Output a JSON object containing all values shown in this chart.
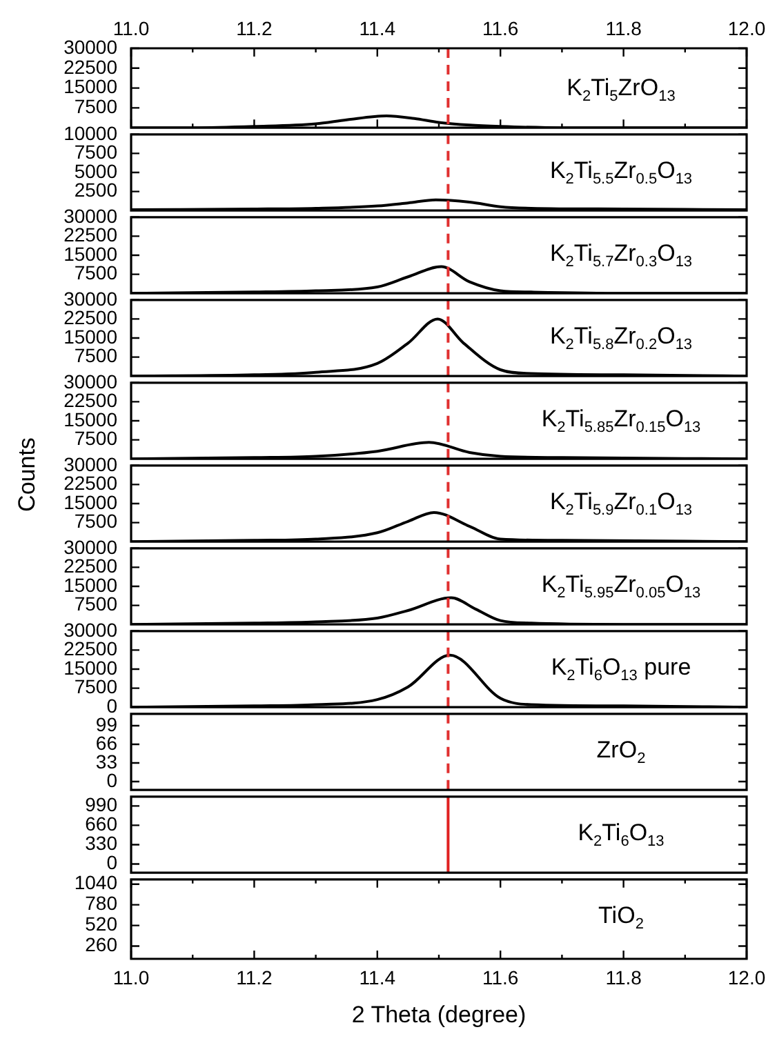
{
  "chart_data": [
    {
      "type": "line",
      "annotations": [
        "K$_{2}$Ti$_{5}$ZrO$_{13}$"
      ],
      "xlim": [
        11.0,
        12.0
      ],
      "x2lim": [
        11.0,
        12.0
      ],
      "x2ticks": [
        {
          "value": 11,
          "label": "11.0"
        },
        {
          "value": 11.1,
          "label": null
        },
        11.2,
        {
          "value": 11.3,
          "label": null
        },
        11.4,
        {
          "value": 11.5,
          "label": null
        },
        11.6,
        {
          "value": 11.7,
          "label": null
        },
        11.8,
        {
          "value": 11.9,
          "label": null
        },
        {
          "value": 12,
          "label": "12.0"
        }
      ],
      "ylim": [
        0,
        30000
      ],
      "yticks": [
        7500,
        15000,
        22500,
        30000
      ],
      "tick_labels": "y",
      "marker": "none",
      "ref_lines": [
        {
          "axis": "x",
          "value": 11.515,
          "color": "#e03030",
          "line_style": "dashed"
        }
      ],
      "series": [
        {
          "color": "#000000",
          "x": [
            11.0,
            11.1,
            11.2,
            11.3,
            11.35,
            11.415,
            11.46,
            11.5,
            11.55,
            11.6,
            11.7,
            11.8,
            12.0
          ],
          "values": [
            0,
            0,
            500,
            1500,
            3000,
            4500,
            3500,
            2000,
            1000,
            500,
            0,
            0,
            0
          ]
        }
      ]
    },
    {
      "type": "line",
      "annotations": [
        "K$_{2}$Ti$_{5.5}$Zr$_{0.5}$O$_{13}$"
      ],
      "xlim": [
        11.0,
        12.0
      ],
      "ylim": [
        0,
        10000
      ],
      "yticks": [
        2500,
        5000,
        7500,
        10000
      ],
      "tick_labels": "y",
      "marker": "none",
      "ref_lines": [
        {
          "axis": "x",
          "value": 11.515,
          "color": "#e03030",
          "line_style": "dashed"
        }
      ],
      "series": [
        {
          "color": "#000000",
          "x": [
            11.0,
            11.2,
            11.3,
            11.4,
            11.45,
            11.495,
            11.55,
            11.6,
            11.65,
            11.8,
            12.0
          ],
          "values": [
            100,
            200,
            300,
            600,
            1000,
            1400,
            1100,
            500,
            300,
            200,
            100
          ]
        }
      ]
    },
    {
      "type": "line",
      "annotations": [
        "K$_{2}$Ti$_{5.7}$Zr$_{0.3}$O$_{13}$"
      ],
      "xlim": [
        11.0,
        12.0
      ],
      "ylim": [
        0,
        30000
      ],
      "yticks": [
        7500,
        15000,
        22500,
        30000
      ],
      "tick_labels": "y",
      "marker": "none",
      "ref_lines": [
        {
          "axis": "x",
          "value": 11.515,
          "color": "#e03030",
          "line_style": "dashed"
        }
      ],
      "series": [
        {
          "color": "#000000",
          "x": [
            11.0,
            11.2,
            11.3,
            11.4,
            11.45,
            11.504,
            11.55,
            11.6,
            11.65,
            11.8,
            12.0
          ],
          "values": [
            0,
            500,
            1000,
            2500,
            6500,
            10500,
            4500,
            1000,
            500,
            0,
            0
          ]
        }
      ]
    },
    {
      "type": "line",
      "annotations": [
        "K$_{2}$Ti$_{5.8}$Zr$_{0.2}$O$_{13}$"
      ],
      "xlim": [
        11.0,
        12.0
      ],
      "ylim": [
        0,
        30000
      ],
      "yticks": [
        7500,
        15000,
        22500,
        30000
      ],
      "tick_labels": "y",
      "marker": "none",
      "ref_lines": [
        {
          "axis": "x",
          "value": 11.515,
          "color": "#e03030",
          "line_style": "dashed"
        }
      ],
      "series": [
        {
          "color": "#000000",
          "x": [
            11.0,
            11.2,
            11.3,
            11.4,
            11.45,
            11.498,
            11.54,
            11.6,
            11.65,
            11.8,
            12.0
          ],
          "values": [
            0,
            500,
            1500,
            5000,
            13000,
            22500,
            13000,
            2500,
            1000,
            500,
            0
          ]
        }
      ]
    },
    {
      "type": "line",
      "annotations": [
        "K$_{2}$Ti$_{5.85}$Zr$_{0.15}$O$_{13}$"
      ],
      "ylabel": "Counts",
      "xlim": [
        11.0,
        12.0
      ],
      "ylim": [
        0,
        30000
      ],
      "yticks": [
        7500,
        15000,
        22500,
        30000
      ],
      "tick_labels": "y",
      "marker": "none",
      "ref_lines": [
        {
          "axis": "x",
          "value": 11.515,
          "color": "#e03030",
          "line_style": "dashed"
        }
      ],
      "series": [
        {
          "color": "#000000",
          "x": [
            11.0,
            11.2,
            11.3,
            11.4,
            11.484,
            11.55,
            11.6,
            11.7,
            12.0
          ],
          "values": [
            0,
            500,
            1000,
            3000,
            6500,
            2500,
            1000,
            500,
            0
          ]
        }
      ]
    },
    {
      "type": "line",
      "annotations": [
        "K$_{2}$Ti$_{5.9}$Zr$_{0.1}$O$_{13}$"
      ],
      "xlim": [
        11.0,
        12.0
      ],
      "ylim": [
        0,
        30000
      ],
      "yticks": [
        7500,
        15000,
        22500,
        30000
      ],
      "tick_labels": "y",
      "marker": "none",
      "ref_lines": [
        {
          "axis": "x",
          "value": 11.515,
          "color": "#e03030",
          "line_style": "dashed"
        }
      ],
      "series": [
        {
          "color": "#000000",
          "x": [
            11.0,
            11.2,
            11.3,
            11.4,
            11.45,
            11.492,
            11.55,
            11.6,
            11.7,
            12.0
          ],
          "values": [
            0,
            500,
            1000,
            3500,
            8000,
            11500,
            6000,
            1000,
            500,
            0
          ]
        }
      ]
    },
    {
      "type": "line",
      "annotations": [
        "K$_{2}$Ti$_{5.95}$Zr$_{0.05}$O$_{13}$"
      ],
      "xlim": [
        11.0,
        12.0
      ],
      "ylim": [
        0,
        30000
      ],
      "yticks": [
        7500,
        15000,
        22500,
        30000
      ],
      "tick_labels": "y",
      "marker": "none",
      "ref_lines": [
        {
          "axis": "x",
          "value": 11.515,
          "color": "#e03030",
          "line_style": "dashed"
        }
      ],
      "series": [
        {
          "color": "#000000",
          "x": [
            11.0,
            11.2,
            11.3,
            11.4,
            11.45,
            11.52,
            11.56,
            11.6,
            11.65,
            11.8,
            12.0
          ],
          "values": [
            0,
            500,
            1000,
            2500,
            5500,
            10500,
            6000,
            1500,
            500,
            0,
            0
          ]
        }
      ]
    },
    {
      "type": "line",
      "annotations": [
        "K$_{2}$Ti$_{6}$O$_{13}$ pure"
      ],
      "xlim": [
        11.0,
        12.0
      ],
      "ylim": [
        0,
        30000
      ],
      "yticks": [
        0,
        7500,
        15000,
        22500,
        30000
      ],
      "tick_labels": "y",
      "marker": "none",
      "ref_lines": [
        {
          "axis": "x",
          "value": 11.515,
          "color": "#e03030",
          "line_style": "dashed"
        }
      ],
      "series": [
        {
          "color": "#000000",
          "x": [
            11.0,
            11.2,
            11.3,
            11.4,
            11.45,
            11.518,
            11.6,
            11.65,
            11.8,
            12.0
          ],
          "values": [
            0,
            500,
            1000,
            3000,
            8000,
            20500,
            3500,
            1000,
            500,
            0
          ]
        }
      ]
    },
    {
      "type": "line",
      "annotations": [
        "ZrO$_{2}$"
      ],
      "xlim": [
        11.0,
        12.0
      ],
      "ylim": [
        -15,
        120
      ],
      "yticks": [
        0,
        33,
        66,
        99
      ],
      "tick_labels": "y",
      "ref_lines": [
        {
          "axis": "x",
          "value": 11.515,
          "color": "#e03030",
          "line_style": "dashed"
        }
      ]
    },
    {
      "type": "line",
      "annotations": [
        "K$_{2}$Ti$_{6}$O$_{13}$"
      ],
      "xlim": [
        11.0,
        12.0
      ],
      "ylim": [
        -150,
        1150
      ],
      "yticks": [
        0,
        330,
        660,
        990
      ],
      "tick_labels": "y",
      "marker": "none",
      "series": [
        {
          "color": "#e02020",
          "x": [
            11.515,
            11.515
          ],
          "values": [
            -150,
            1150
          ]
        }
      ]
    },
    {
      "type": "line",
      "annotations": [
        "TiO$_{2}$"
      ],
      "xlabel": "2 Theta (degree)",
      "xlim": [
        11.0,
        12.0
      ],
      "xticks": [
        {
          "value": 11,
          "label": "11.0"
        },
        {
          "value": 11.1,
          "label": null
        },
        11.2,
        {
          "value": 11.3,
          "label": null
        },
        11.4,
        {
          "value": 11.5,
          "label": null
        },
        11.6,
        {
          "value": 11.7,
          "label": null
        },
        11.8,
        {
          "value": 11.9,
          "label": null
        },
        {
          "value": 12,
          "label": "12.0"
        }
      ],
      "ylim": [
        100,
        1100
      ],
      "yticks": [
        260,
        520,
        780,
        1040
      ]
    }
  ]
}
